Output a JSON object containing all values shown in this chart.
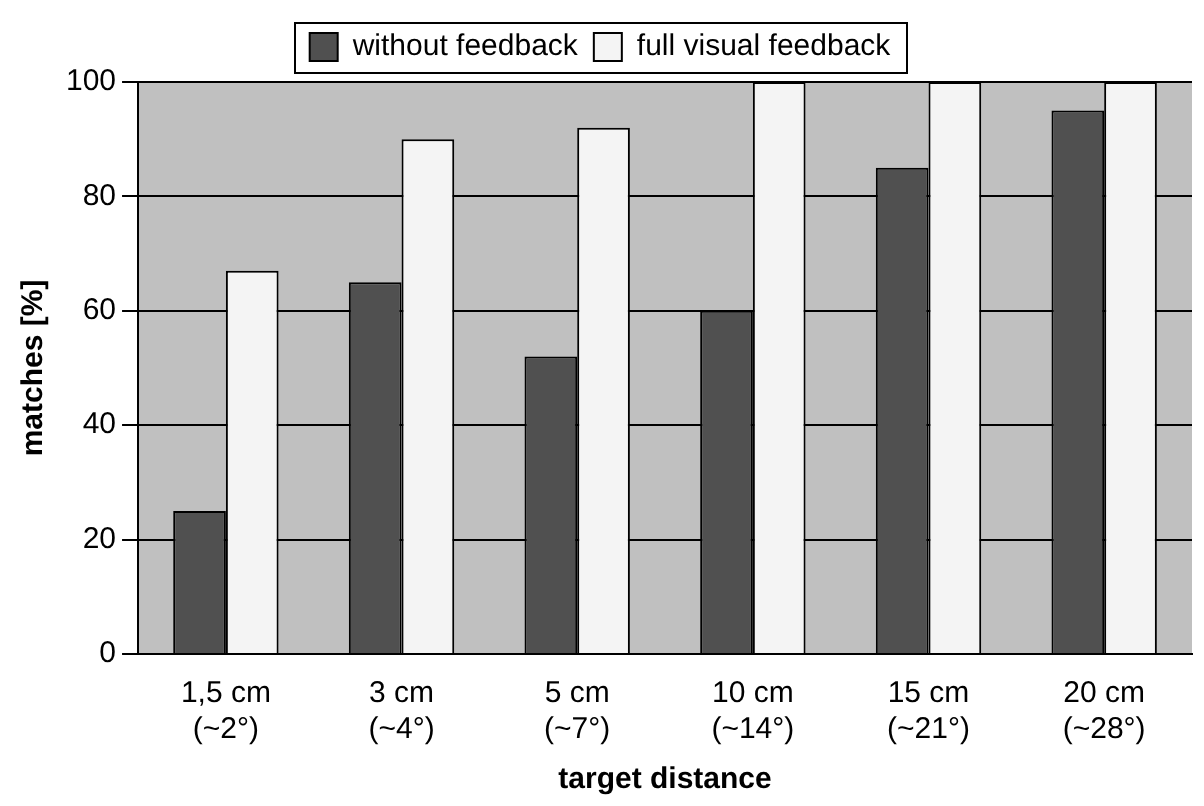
{
  "chart_data": {
    "type": "bar",
    "xlabel": "target distance",
    "ylabel": "matches [%]",
    "categories": [
      "1,5 cm\n(~2°)",
      "3 cm\n(~4°)",
      "5 cm\n(~7°)",
      "10 cm\n(~14°)",
      "15 cm\n(~21°)",
      "20 cm\n(~28°)"
    ],
    "series": [
      {
        "name": "without feedback",
        "color": "#505050",
        "values": [
          25,
          65,
          52,
          60,
          85,
          95
        ]
      },
      {
        "name": "full visual feedback",
        "color": "#f4f4f4",
        "values": [
          67,
          90,
          92,
          100,
          100,
          100
        ]
      }
    ],
    "ylim": [
      0,
      100
    ],
    "yticks": [
      0,
      20,
      40,
      60,
      80,
      100
    ],
    "grid": "y",
    "legend": "top"
  }
}
